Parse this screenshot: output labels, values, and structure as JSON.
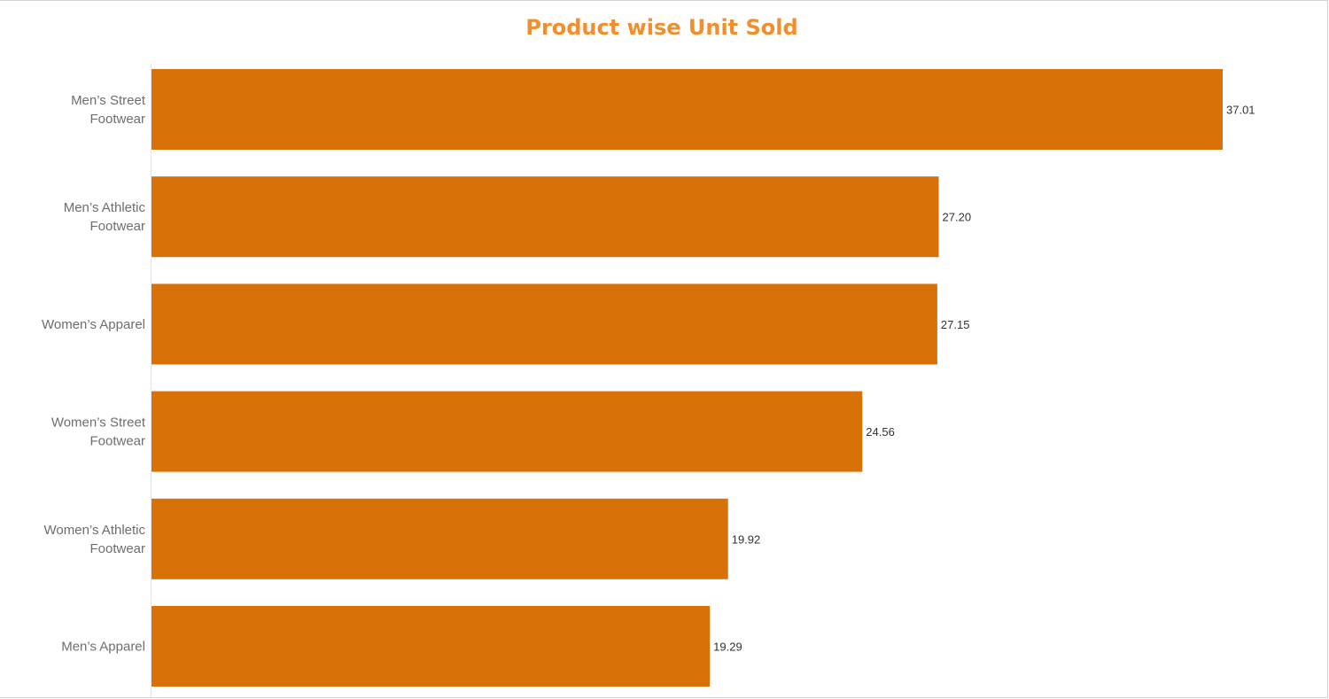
{
  "chart_data": {
    "type": "bar",
    "orientation": "horizontal",
    "title": "Product wise Unit Sold",
    "categories": [
      [
        "Men’s Street",
        "Footwear"
      ],
      [
        "Men’s Athletic",
        "Footwear"
      ],
      [
        "Women’s Apparel"
      ],
      [
        "Women’s Street",
        "Footwear"
      ],
      [
        "Women’s Athletic",
        "Footwear"
      ],
      [
        "Men’s Apparel"
      ]
    ],
    "values": [
      37.01,
      27.2,
      27.15,
      24.56,
      19.92,
      19.29
    ],
    "value_labels": [
      "37.01",
      "27.20",
      "27.15",
      "24.56",
      "19.92",
      "19.29"
    ],
    "bar_color": "#d97109",
    "title_color": "#f28e2b",
    "xlim": [
      0,
      37.01
    ],
    "grid": false,
    "xlabel": "",
    "ylabel": ""
  }
}
